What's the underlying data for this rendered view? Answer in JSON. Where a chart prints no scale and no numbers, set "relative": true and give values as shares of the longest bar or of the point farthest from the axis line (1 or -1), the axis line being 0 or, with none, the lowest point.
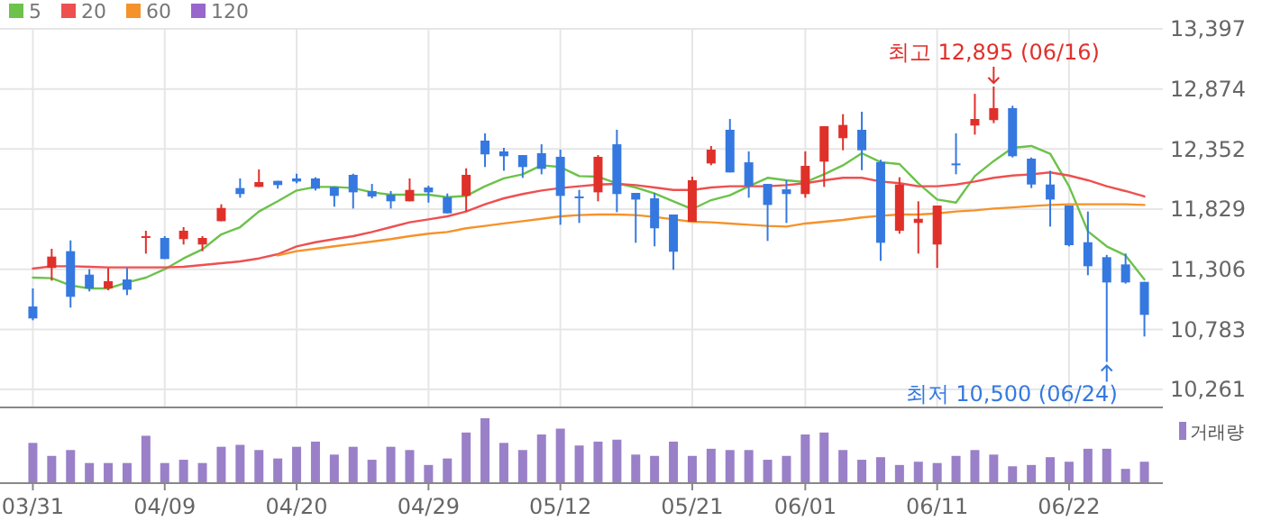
{
  "chart_data": [
    {
      "type": "candlestick",
      "ohlc": [
        [
          10982,
          11139,
          10862,
          10878
        ],
        [
          11317,
          11484,
          11207,
          11416
        ],
        [
          11463,
          11557,
          10972,
          11066
        ],
        [
          11259,
          11306,
          11113,
          11139
        ],
        [
          11139,
          11317,
          11123,
          11202
        ],
        [
          11217,
          11317,
          11081,
          11128
        ],
        [
          11583,
          11641,
          11442,
          11594
        ],
        [
          11578,
          11594,
          11395,
          11395
        ],
        [
          11568,
          11672,
          11521,
          11641
        ],
        [
          11521,
          11594,
          11463,
          11578
        ],
        [
          11724,
          11871,
          11724,
          11839
        ],
        [
          12012,
          12096,
          11928,
          11960
        ],
        [
          12022,
          12174,
          12022,
          12064
        ],
        [
          12075,
          12075,
          12007,
          12038
        ],
        [
          12096,
          12137,
          12054,
          12069
        ],
        [
          12096,
          12106,
          11991,
          12007
        ],
        [
          12022,
          12022,
          11850,
          11944
        ],
        [
          12127,
          12137,
          11834,
          11975
        ],
        [
          11986,
          12048,
          11923,
          11939
        ],
        [
          11954,
          11986,
          11834,
          11897
        ],
        [
          11897,
          12096,
          11897,
          11996
        ],
        [
          12017,
          12033,
          11886,
          11975
        ],
        [
          11933,
          11965,
          11792,
          11792
        ],
        [
          11944,
          12184,
          11808,
          12127
        ],
        [
          12425,
          12488,
          12195,
          12305
        ],
        [
          12331,
          12362,
          12163,
          12289
        ],
        [
          12299,
          12299,
          12101,
          12195
        ],
        [
          12315,
          12393,
          12132,
          12179
        ],
        [
          12284,
          12346,
          11693,
          11944
        ],
        [
          11939,
          11996,
          11709,
          11928
        ],
        [
          11975,
          12299,
          11897,
          12284
        ],
        [
          12393,
          12519,
          11803,
          11960
        ],
        [
          11970,
          11970,
          11536,
          11912
        ],
        [
          11923,
          11970,
          11505,
          11662
        ],
        [
          11782,
          11782,
          11301,
          11458
        ],
        [
          11719,
          12111,
          11719,
          12080
        ],
        [
          12226,
          12378,
          12211,
          12346
        ],
        [
          12519,
          12613,
          12148,
          12148
        ],
        [
          12236,
          12331,
          11928,
          12028
        ],
        [
          12048,
          12048,
          11552,
          11865
        ],
        [
          12001,
          12080,
          11709,
          11960
        ],
        [
          11960,
          12331,
          11928,
          12205
        ],
        [
          12242,
          12550,
          12022,
          12550
        ],
        [
          12446,
          12655,
          12341,
          12561
        ],
        [
          12519,
          12676,
          12168,
          12341
        ],
        [
          12237,
          12258,
          11379,
          11536
        ],
        [
          11641,
          12106,
          11615,
          12043
        ],
        [
          11709,
          11897,
          11442,
          11745
        ],
        [
          11521,
          11860,
          11317,
          11860
        ],
        [
          12226,
          12488,
          12132,
          12216
        ],
        [
          12556,
          12832,
          12477,
          12613
        ],
        [
          12603,
          12895,
          12577,
          12707
        ],
        [
          12707,
          12728,
          12278,
          12289
        ],
        [
          12268,
          12278,
          12012,
          12043
        ],
        [
          12043,
          12163,
          11677,
          11912
        ],
        [
          11860,
          11860,
          11505,
          11515
        ],
        [
          11541,
          11808,
          11254,
          11332
        ],
        [
          11411,
          11431,
          10500,
          11191
        ],
        [
          11348,
          11442,
          11181,
          11191
        ],
        [
          11196,
          11196,
          10721,
          10909
        ]
      ],
      "series": [
        {
          "name": "5",
          "type": "line",
          "color": "#6cc24a",
          "values": [
            11233,
            11228,
            11165,
            11139,
            11139,
            11191,
            11233,
            11306,
            11400,
            11479,
            11609,
            11672,
            11808,
            11897,
            11991,
            12022,
            12022,
            12012,
            11975,
            11954,
            11954,
            11954,
            11933,
            11944,
            12028,
            12096,
            12132,
            12210,
            12195,
            12116,
            12111,
            12054,
            12017,
            11965,
            11897,
            11829,
            11907,
            11949,
            12028,
            12101,
            12080,
            12064,
            12132,
            12210,
            12315,
            12237,
            12221,
            12054,
            11912,
            11886,
            12116,
            12247,
            12362,
            12378,
            12310,
            12028,
            11636,
            11505,
            11426,
            11217
          ]
        },
        {
          "name": "20",
          "type": "line",
          "color": "#ee5050",
          "values": [
            11311,
            11332,
            11332,
            11327,
            11322,
            11322,
            11322,
            11322,
            11327,
            11343,
            11358,
            11374,
            11400,
            11437,
            11505,
            11541,
            11568,
            11594,
            11630,
            11672,
            11714,
            11740,
            11766,
            11808,
            11871,
            11923,
            11960,
            11991,
            12012,
            12028,
            12043,
            12048,
            12038,
            12017,
            11996,
            11996,
            12017,
            12028,
            12028,
            12028,
            12038,
            12054,
            12080,
            12101,
            12101,
            12069,
            12054,
            12028,
            12028,
            12043,
            12069,
            12101,
            12121,
            12132,
            12148,
            12121,
            12080,
            12028,
            11986,
            11939
          ]
        },
        {
          "name": "60",
          "type": "line",
          "color": "#f5922a",
          "values": [
            null,
            null,
            null,
            null,
            null,
            null,
            null,
            null,
            null,
            null,
            null,
            null,
            null,
            11426,
            11463,
            11484,
            11505,
            11526,
            11547,
            11568,
            11594,
            11615,
            11630,
            11662,
            11683,
            11704,
            11724,
            11745,
            11766,
            11777,
            11782,
            11782,
            11777,
            11761,
            11740,
            11719,
            11714,
            11704,
            11693,
            11683,
            11677,
            11704,
            11719,
            11735,
            11756,
            11771,
            11782,
            11782,
            11792,
            11808,
            11818,
            11834,
            11844,
            11855,
            11865,
            11871,
            11871,
            11871,
            11871,
            11865
          ]
        },
        {
          "name": "120",
          "type": "line",
          "color": "#9966cc",
          "values": [
            null,
            null,
            null,
            null,
            null,
            null,
            null,
            null,
            null,
            null,
            null,
            null,
            null,
            null,
            null,
            null,
            null,
            null,
            null,
            null,
            null,
            null,
            null,
            null,
            null,
            null,
            null,
            null,
            null,
            null,
            null,
            null,
            null,
            null,
            null,
            null,
            null,
            null,
            null,
            null,
            null,
            null,
            null,
            null,
            null,
            null,
            null,
            null,
            null,
            null,
            null,
            null,
            null,
            null,
            null,
            null,
            null,
            null,
            null,
            null
          ]
        }
      ],
      "ylim": [
        10104,
        13397
      ],
      "yticks": [
        {
          "value": 10261,
          "label": "10,261"
        },
        {
          "value": 10783,
          "label": "10,783"
        },
        {
          "value": 11306,
          "label": "11,306"
        },
        {
          "value": 11829,
          "label": "11,829"
        },
        {
          "value": 12352,
          "label": "12,352"
        },
        {
          "value": 12874,
          "label": "12,874"
        },
        {
          "value": 13397,
          "label": "13,397"
        }
      ],
      "annotations": [
        "최고 12,895 (06/16)",
        "최저 10,500 (06/24)"
      ],
      "grid": true,
      "legend": "top left",
      "tick_labels": "y"
    },
    {
      "type": "bar",
      "relative": true,
      "categories": [
        "03/31",
        null,
        null,
        null,
        null,
        null,
        null,
        "04/09",
        null,
        null,
        null,
        null,
        null,
        null,
        "04/20",
        null,
        null,
        null,
        null,
        null,
        null,
        "04/29",
        null,
        null,
        null,
        null,
        null,
        null,
        "05/12",
        null,
        null,
        null,
        null,
        null,
        null,
        "05/21",
        null,
        null,
        null,
        null,
        null,
        "06/01",
        null,
        null,
        null,
        null,
        null,
        null,
        "06/11",
        null,
        null,
        null,
        null,
        null,
        null,
        "06/22",
        null,
        null,
        null,
        null
      ],
      "series": [
        {
          "name": "거래량",
          "color": "#9a80c8",
          "values": [
            0.62,
            0.42,
            0.51,
            0.31,
            0.31,
            0.31,
            0.73,
            0.31,
            0.36,
            0.31,
            0.56,
            0.59,
            0.51,
            0.38,
            0.56,
            0.64,
            0.44,
            0.56,
            0.36,
            0.56,
            0.51,
            0.28,
            0.38,
            0.78,
            1,
            0.62,
            0.51,
            0.75,
            0.84,
            0.58,
            0.64,
            0.67,
            0.44,
            0.42,
            0.64,
            0.42,
            0.53,
            0.51,
            0.51,
            0.36,
            0.42,
            0.75,
            0.78,
            0.51,
            0.36,
            0.4,
            0.28,
            0.33,
            0.31,
            0.42,
            0.51,
            0.44,
            0.26,
            0.28,
            0.4,
            0.33,
            0.53,
            0.53,
            0.22,
            0.33
          ]
        }
      ],
      "legend": "top right",
      "tick_labels": "x"
    }
  ]
}
